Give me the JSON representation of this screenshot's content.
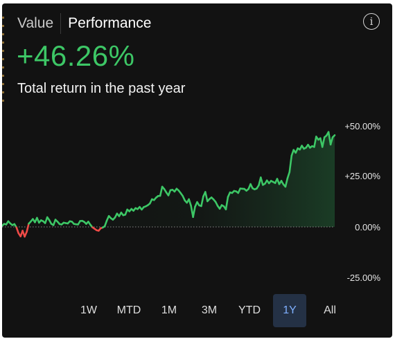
{
  "header": {
    "tabs": [
      {
        "label": "Value",
        "active": false
      },
      {
        "label": "Performance",
        "active": true
      }
    ],
    "info_icon": "info-circle-icon"
  },
  "summary": {
    "value": "+46.26%",
    "caption": "Total return in the past year"
  },
  "chart_data": {
    "type": "line",
    "ylim": [
      -25,
      50
    ],
    "yticks": [
      "+50.00%",
      "+25.00%",
      "0.00%",
      "-25.00%"
    ],
    "baseline": 0,
    "colors": {
      "positive": "#3dc766",
      "negative": "#ef4b47",
      "baseline": "#888888"
    },
    "values": [
      0.5,
      1.5,
      1.2,
      2.8,
      1.7,
      0.9,
      1.4,
      -0.2,
      -3.1,
      -4.7,
      -1.9,
      -4.8,
      -2.4,
      1.6,
      2.7,
      3.9,
      2.3,
      4.5,
      2.1,
      3.3,
      2.8,
      1.9,
      4.8,
      3.4,
      1.5,
      0.9,
      3.6,
      2.6,
      1.4,
      1.2,
      2.1,
      1.9,
      1.7,
      2.8,
      2.6,
      1.5,
      1.3,
      1.2,
      2.9,
      3.0,
      2.5,
      1.5,
      2.6,
      1.1,
      -0.2,
      -0.9,
      -1.6,
      -1.9,
      -0.7,
      -0.3,
      0.3,
      3.1,
      5.4,
      4.3,
      3.6,
      4.7,
      6.6,
      5.3,
      7.1,
      5.8,
      6.1,
      8.6,
      7.7,
      8.9,
      8.0,
      9.3,
      8.8,
      9.9,
      8.6,
      9.8,
      10.2,
      10.8,
      11.6,
      13.7,
      13.3,
      14.5,
      15.3,
      15.4,
      19.9,
      18.7,
      17.1,
      15.6,
      18.2,
      18.4,
      17.5,
      18.9,
      18.0,
      16.7,
      15.3,
      13.1,
      12.0,
      13.7,
      10.5,
      4.9,
      10.0,
      12.3,
      10.7,
      10.3,
      15.1,
      17.3,
      12.7,
      13.8,
      14.6,
      13.6,
      12.4,
      10.4,
      9.0,
      10.8,
      10.2,
      8.7,
      14.8,
      17.1,
      16.8,
      17.8,
      17.6,
      16.8,
      19.0,
      18.9,
      18.8,
      17.9,
      18.8,
      21.2,
      19.1,
      18.6,
      19.0,
      20.6,
      24.5,
      20.8,
      21.4,
      23.0,
      21.6,
      22.8,
      22.3,
      21.7,
      23.8,
      21.2,
      22.8,
      21.1,
      19.9,
      24.1,
      27.2,
      35.3,
      38.1,
      36.7,
      38.9,
      38.3,
      40.2,
      38.7,
      39.2,
      40.7,
      39.2,
      40.0,
      39.6,
      44.7,
      43.2,
      43.9,
      39.6,
      44.4,
      45.2,
      47.0,
      40.8,
      44.4,
      45.4
    ]
  },
  "ranges": {
    "options": [
      "1W",
      "MTD",
      "1M",
      "3M",
      "YTD",
      "1Y",
      "All"
    ],
    "selected": "1Y"
  }
}
